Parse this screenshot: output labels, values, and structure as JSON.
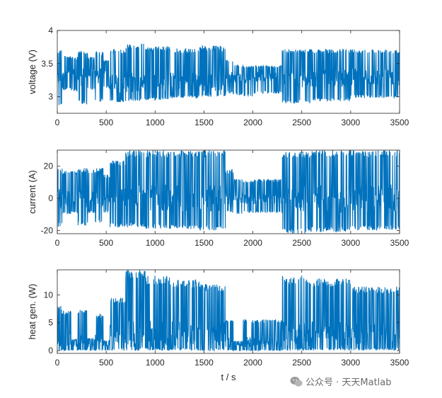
{
  "chart_data": [
    {
      "type": "line",
      "ylabel": "voltage (V)",
      "xlabel": "",
      "xlim": [
        0,
        3500
      ],
      "ylim": [
        2.75,
        4
      ],
      "xticks": [
        "0",
        "500",
        "1000",
        "1500",
        "2000",
        "2500",
        "3000",
        "3500"
      ],
      "yticks": [
        "3",
        "3.5",
        "4"
      ],
      "ytick_values": [
        3,
        3.5,
        4
      ],
      "series_color": "#0072BD",
      "segments": [
        {
          "x": [
            0,
            50
          ],
          "low": 2.86,
          "high": 3.72,
          "mid": 3.28
        },
        {
          "x": [
            50,
            140
          ],
          "low": 3.1,
          "high": 3.62,
          "mid": 3.38
        },
        {
          "x": [
            140,
            210
          ],
          "low": 3.08,
          "high": 3.6,
          "mid": 3.34
        },
        {
          "x": [
            210,
            310
          ],
          "low": 2.88,
          "high": 3.7,
          "mid": 3.3
        },
        {
          "x": [
            310,
            390
          ],
          "low": 3.1,
          "high": 3.6,
          "mid": 3.36
        },
        {
          "x": [
            390,
            470
          ],
          "low": 2.92,
          "high": 3.68,
          "mid": 3.3
        },
        {
          "x": [
            470,
            540
          ],
          "low": 3.12,
          "high": 3.55,
          "mid": 3.36
        },
        {
          "x": [
            540,
            700
          ],
          "low": 2.92,
          "high": 3.72,
          "mid": 3.2
        },
        {
          "x": [
            700,
            900
          ],
          "low": 2.93,
          "high": 3.8,
          "mid": 3.22
        },
        {
          "x": [
            900,
            1150
          ],
          "low": 2.95,
          "high": 3.76,
          "mid": 3.22
        },
        {
          "x": [
            1150,
            1450
          ],
          "low": 2.98,
          "high": 3.73,
          "mid": 3.24
        },
        {
          "x": [
            1450,
            1720
          ],
          "low": 3.0,
          "high": 3.77,
          "mid": 3.22
        },
        {
          "x": [
            1720,
            1800
          ],
          "low": 3.05,
          "high": 3.56,
          "mid": 3.3
        },
        {
          "x": [
            1800,
            1900
          ],
          "low": 3.02,
          "high": 3.48,
          "mid": 3.28
        },
        {
          "x": [
            1900,
            2000
          ],
          "low": 3.0,
          "high": 3.46,
          "mid": 3.28
        },
        {
          "x": [
            2000,
            2300
          ],
          "low": 3.05,
          "high": 3.47,
          "mid": 3.3
        },
        {
          "x": [
            2300,
            2600
          ],
          "low": 2.9,
          "high": 3.72,
          "mid": 3.26
        },
        {
          "x": [
            2600,
            3000
          ],
          "low": 2.93,
          "high": 3.72,
          "mid": 3.28
        },
        {
          "x": [
            3000,
            3500
          ],
          "low": 2.98,
          "high": 3.72,
          "mid": 3.3
        }
      ]
    },
    {
      "type": "line",
      "ylabel": "current (A)",
      "xlabel": "",
      "xlim": [
        0,
        3500
      ],
      "ylim": [
        -22,
        30
      ],
      "xticks": [
        "0",
        "500",
        "1000",
        "1500",
        "2000",
        "2500",
        "3000",
        "3500"
      ],
      "yticks": [
        "-20",
        "0",
        "20"
      ],
      "ytick_values": [
        -20,
        0,
        20
      ],
      "series_color": "#0072BD",
      "segments": [
        {
          "x": [
            0,
            50
          ],
          "low": -18,
          "high": 19,
          "mid": 0
        },
        {
          "x": [
            50,
            140
          ],
          "low": -10,
          "high": 18,
          "mid": 0
        },
        {
          "x": [
            140,
            210
          ],
          "low": -9,
          "high": 17,
          "mid": 0
        },
        {
          "x": [
            210,
            310
          ],
          "low": -17,
          "high": 19,
          "mid": 0
        },
        {
          "x": [
            310,
            390
          ],
          "low": -9,
          "high": 18,
          "mid": 0
        },
        {
          "x": [
            390,
            470
          ],
          "low": -16,
          "high": 19,
          "mid": 0
        },
        {
          "x": [
            470,
            540
          ],
          "low": -9,
          "high": 15,
          "mid": 0
        },
        {
          "x": [
            540,
            700
          ],
          "low": -18,
          "high": 24,
          "mid": 0
        },
        {
          "x": [
            700,
            900
          ],
          "low": -18,
          "high": 30,
          "mid": 0
        },
        {
          "x": [
            900,
            1150
          ],
          "low": -19,
          "high": 30,
          "mid": 0
        },
        {
          "x": [
            1150,
            1450
          ],
          "low": -19,
          "high": 30,
          "mid": 0
        },
        {
          "x": [
            1450,
            1720
          ],
          "low": -20,
          "high": 30,
          "mid": 0
        },
        {
          "x": [
            1720,
            1800
          ],
          "low": -9,
          "high": 18,
          "mid": 0
        },
        {
          "x": [
            1800,
            1900
          ],
          "low": -10,
          "high": 12,
          "mid": 0
        },
        {
          "x": [
            1900,
            2000
          ],
          "low": -9,
          "high": 11,
          "mid": 0
        },
        {
          "x": [
            2000,
            2300
          ],
          "low": -9,
          "high": 12,
          "mid": 0
        },
        {
          "x": [
            2300,
            2600
          ],
          "low": -22,
          "high": 29,
          "mid": 0
        },
        {
          "x": [
            2600,
            3000
          ],
          "low": -21,
          "high": 30,
          "mid": 0
        },
        {
          "x": [
            3000,
            3500
          ],
          "low": -20,
          "high": 30,
          "mid": 0
        }
      ]
    },
    {
      "type": "line",
      "ylabel": "heat gen. (W)",
      "xlabel": "t / s",
      "xlim": [
        0,
        3500
      ],
      "ylim": [
        -0.5,
        14.5
      ],
      "xticks": [
        "0",
        "500",
        "1000",
        "1500",
        "2000",
        "2500",
        "3000",
        "3500"
      ],
      "yticks": [
        "0",
        "5",
        "10"
      ],
      "ytick_values": [
        0,
        5,
        10
      ],
      "series_color": "#0072BD",
      "segments": [
        {
          "x": [
            0,
            50
          ],
          "low": 0,
          "high": 8.2,
          "mid": 2
        },
        {
          "x": [
            50,
            140
          ],
          "low": 0,
          "high": 7.2,
          "mid": 2
        },
        {
          "x": [
            140,
            210
          ],
          "low": 0,
          "high": 2.0,
          "mid": 1
        },
        {
          "x": [
            210,
            310
          ],
          "low": 0,
          "high": 7.4,
          "mid": 2
        },
        {
          "x": [
            310,
            390
          ],
          "low": 0,
          "high": 2.2,
          "mid": 1
        },
        {
          "x": [
            390,
            470
          ],
          "low": 0,
          "high": 6.6,
          "mid": 2
        },
        {
          "x": [
            470,
            540
          ],
          "low": 0,
          "high": 1.8,
          "mid": 1
        },
        {
          "x": [
            540,
            700
          ],
          "low": 0,
          "high": 9.5,
          "mid": 3
        },
        {
          "x": [
            700,
            900
          ],
          "low": 0,
          "high": 14.5,
          "mid": 3
        },
        {
          "x": [
            900,
            1150
          ],
          "low": 0,
          "high": 13.5,
          "mid": 3
        },
        {
          "x": [
            1150,
            1450
          ],
          "low": 0,
          "high": 12.8,
          "mid": 3
        },
        {
          "x": [
            1450,
            1720
          ],
          "low": 0,
          "high": 12.0,
          "mid": 3
        },
        {
          "x": [
            1720,
            1800
          ],
          "low": 0,
          "high": 5.5,
          "mid": 1.5
        },
        {
          "x": [
            1800,
            1900
          ],
          "low": 0,
          "high": 1.7,
          "mid": 1
        },
        {
          "x": [
            1900,
            2000
          ],
          "low": 0,
          "high": 5.7,
          "mid": 1.5
        },
        {
          "x": [
            2000,
            2300
          ],
          "low": 0,
          "high": 5.6,
          "mid": 1.5
        },
        {
          "x": [
            2300,
            2600
          ],
          "low": 0,
          "high": 13.5,
          "mid": 3
        },
        {
          "x": [
            2600,
            3000
          ],
          "low": 0,
          "high": 13.0,
          "mid": 3
        },
        {
          "x": [
            3000,
            3500
          ],
          "low": 0,
          "high": 11.5,
          "mid": 3
        }
      ]
    }
  ],
  "watermark": {
    "text": "公众号 · 天天Matlab",
    "icon": "wechat-icon"
  }
}
